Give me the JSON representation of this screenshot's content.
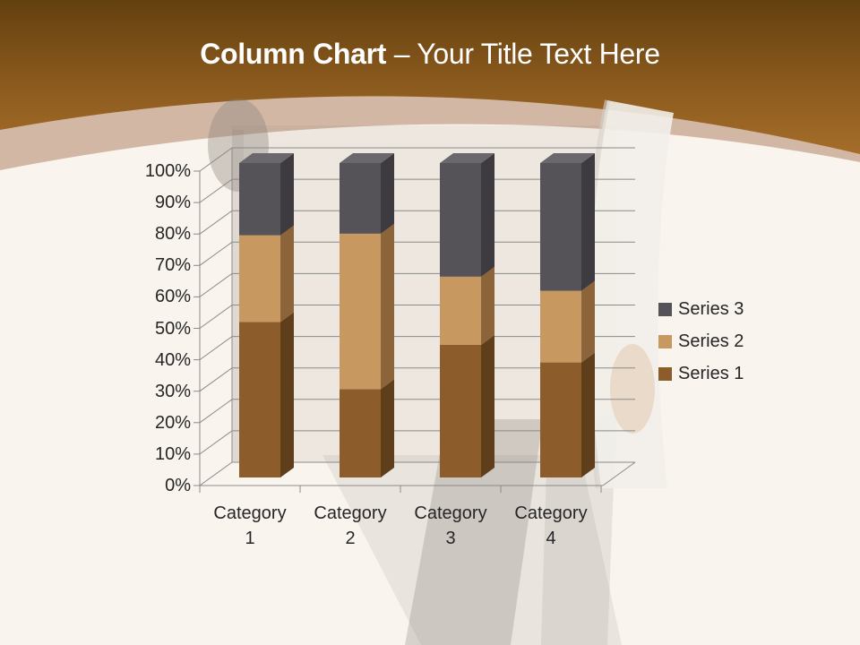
{
  "slide": {
    "title": {
      "bold": "Column Chart",
      "rest": "– Your Title Text Here"
    }
  },
  "chart_data": {
    "type": "bar",
    "subtype": "3d-stacked-100-percent-column",
    "title": "",
    "categories": [
      "Category 1",
      "Category 2",
      "Category 3",
      "Category 4"
    ],
    "series": [
      {
        "name": "Series 1",
        "values": [
          4.3,
          2.5,
          3.5,
          4.5
        ],
        "front_color": "#8C5C2A",
        "side_color": "#5F3E1B",
        "top_color": "#9A6C36"
      },
      {
        "name": "Series 2",
        "values": [
          2.4,
          4.4,
          1.8,
          2.8
        ],
        "front_color": "#C79961",
        "side_color": "#8C6439",
        "top_color": "#D2A66C"
      },
      {
        "name": "Series 3",
        "values": [
          2.0,
          2.0,
          3.0,
          5.0
        ],
        "front_color": "#565358",
        "side_color": "#3D3A40",
        "top_color": "#6B686D"
      }
    ],
    "y_axis": {
      "min": 0,
      "max": 100,
      "unit": "%",
      "ticks": [
        "0%",
        "10%",
        "20%",
        "30%",
        "40%",
        "50%",
        "60%",
        "70%",
        "80%",
        "90%",
        "100%"
      ]
    },
    "legend": {
      "position": "right",
      "order_top_to_bottom": [
        "Series 3",
        "Series 2",
        "Series 1"
      ]
    },
    "gridlines": true
  },
  "colors": {
    "header_gradient_top": "#63400F",
    "header_gradient_mid": "#8B5A1E",
    "header_gradient_bottom": "#A56D29",
    "header_band": "#D3B7A5",
    "body_background": "#FAF4EE",
    "gridline": "#8A8A8A",
    "axis_text": "#262626",
    "title_text": "#FFFFFF"
  }
}
